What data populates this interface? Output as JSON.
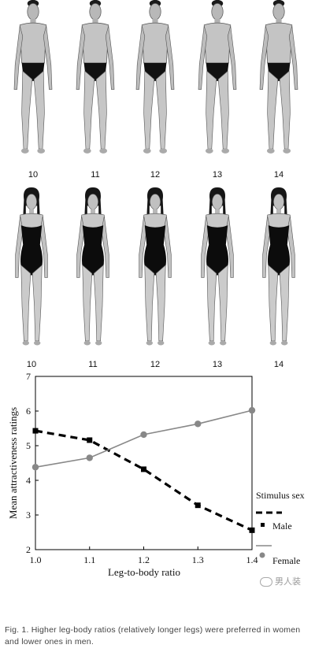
{
  "figures": {
    "male_labels": [
      "10",
      "11",
      "12",
      "13",
      "14"
    ],
    "female_labels": [
      "10",
      "11",
      "12",
      "13",
      "14"
    ],
    "leg_ratios": [
      1.0,
      1.1,
      1.2,
      1.3,
      1.4
    ]
  },
  "chart_data": {
    "type": "line",
    "x": [
      1.0,
      1.1,
      1.2,
      1.3,
      1.4
    ],
    "x_ticks": [
      "1.0",
      "1.1",
      "1.2",
      "1.3",
      "1.4"
    ],
    "y_ticks": [
      "2",
      "3",
      "4",
      "5",
      "6",
      "7"
    ],
    "xlabel": "Leg-to-body ratio",
    "ylabel": "Mean attractiveness ratings",
    "xlim": [
      1.0,
      1.4
    ],
    "ylim": [
      2,
      7
    ],
    "grid": false,
    "legend_title": "Stimulus sex",
    "legend_placement": "right",
    "series": [
      {
        "name": "Male",
        "values": [
          5.43,
          5.16,
          4.32,
          3.28,
          2.56
        ],
        "color": "#000000",
        "style": "dashed",
        "marker": "square"
      },
      {
        "name": "Female",
        "values": [
          4.38,
          4.65,
          5.32,
          5.63,
          6.02
        ],
        "color": "#888888",
        "style": "solid",
        "marker": "circle"
      }
    ]
  },
  "caption": "Fig. 1. Higher leg-body ratios (relatively longer legs) were preferred in women and lower ones in men.",
  "watermark": "男人装"
}
